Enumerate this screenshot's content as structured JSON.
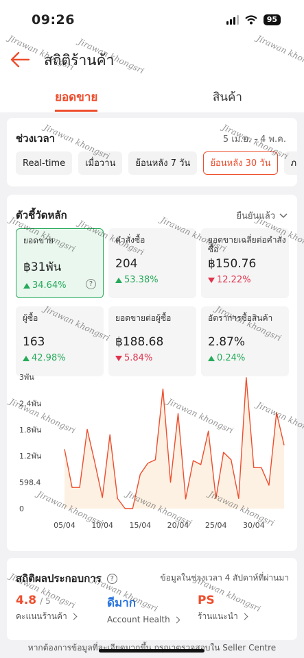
{
  "status_bar": {
    "time": "09:26",
    "battery": "95"
  },
  "header": {
    "title": "สถิติร้านค้า"
  },
  "tabs": [
    {
      "label": "ยอดขาย",
      "active": true
    },
    {
      "label": "สินค้า",
      "active": false
    }
  ],
  "period": {
    "label": "ช่วงเวลา",
    "range": "5 เม.ย. - 4 พ.ค.",
    "chips": [
      "Real-time",
      "เมื่อวาน",
      "ย้อนหลัง 7 วัน",
      "ย้อนหลัง 30 วัน",
      "ภายใ"
    ],
    "selected": "ย้อนหลัง 30 วัน"
  },
  "key_metrics": {
    "label": "ตัวชี้วัดหลัก",
    "status": "ยืนยันแล้ว",
    "help": "?",
    "items": [
      {
        "label": "ยอดขาย",
        "value": "฿31พัน",
        "change": "34.64%",
        "direction": "up"
      },
      {
        "label": "คำสั่งซื้อ",
        "value": "204",
        "change": "53.38%",
        "direction": "up"
      },
      {
        "label": "ยอดขายเฉลี่ยต่อคำสั่งซื้อ",
        "value": "฿150.76",
        "change": "12.22%",
        "direction": "down"
      },
      {
        "label": "ผู้ซื้อ",
        "value": "163",
        "change": "42.98%",
        "direction": "up"
      },
      {
        "label": "ยอดขายต่อผู้ซื้อ",
        "value": "฿188.68",
        "change": "5.84%",
        "direction": "down"
      },
      {
        "label": "อัตราการซื้อสินค้า",
        "value": "2.87%",
        "change": "0.24%",
        "direction": "up"
      }
    ]
  },
  "chart_data": {
    "type": "area",
    "title": "",
    "xlabel": "",
    "ylabel": "",
    "y_tick_labels": [
      "3พัน",
      "2.4พัน",
      "1.8พัน",
      "1.2พัน",
      "598.4",
      "0"
    ],
    "y_tick_values": [
      2992,
      2393.6,
      1795.2,
      1196.8,
      598.4,
      0
    ],
    "ylim": [
      0,
      2992
    ],
    "x_tick_labels": [
      "05/04",
      "10/04",
      "15/04",
      "20/04",
      "25/04",
      "30/04"
    ],
    "x_tick_index": [
      0,
      5,
      10,
      15,
      20,
      25
    ],
    "x": [
      "05/04",
      "06/04",
      "07/04",
      "08/04",
      "09/04",
      "10/04",
      "11/04",
      "12/04",
      "13/04",
      "14/04",
      "15/04",
      "16/04",
      "17/04",
      "18/04",
      "19/04",
      "20/04",
      "21/04",
      "22/04",
      "23/04",
      "24/04",
      "25/04",
      "26/04",
      "27/04",
      "28/04",
      "29/04",
      "30/04",
      "01/05",
      "02/05",
      "03/05",
      "04/05"
    ],
    "series": [
      {
        "values": [
          1350,
          480,
          480,
          1800,
          1050,
          250,
          1680,
          230,
          0,
          0,
          780,
          1030,
          1110,
          2720,
          600,
          2160,
          220,
          1090,
          1000,
          1760,
          230,
          1280,
          1110,
          230,
          2980,
          930,
          930,
          530,
          2180,
          1440
        ]
      }
    ],
    "grid": false,
    "colors": {
      "line": "#ee4d2d",
      "fill": "#fdf1e3"
    }
  },
  "performance": {
    "label": "สถิติผลประกอบการ",
    "help": "?",
    "note": "ข้อมูลในช่วงเวลา 4 สัปดาห์ที่ผ่านมา",
    "items": [
      {
        "value": "4.8",
        "suffix": "/ 5",
        "label": "คะแนนร้านค้า",
        "color": "#ee4d2d"
      },
      {
        "value": "ดีมาก",
        "suffix": "",
        "label": "Account Health",
        "color": "#2673dd"
      },
      {
        "value": "PS",
        "suffix": "",
        "label": "ร้านแนะนำ",
        "color": "#ee4d2d"
      }
    ]
  },
  "footer": {
    "text": "หากต้องการข้อมูลที่ละเอียดมากขึ้น กรุณาตรวจสอบใน Seller Centre"
  },
  "watermark": "Jirawan khongsri",
  "colors": {
    "accent": "#ee4d2d",
    "positive": "#26aa5a",
    "negative": "#e0334d"
  }
}
